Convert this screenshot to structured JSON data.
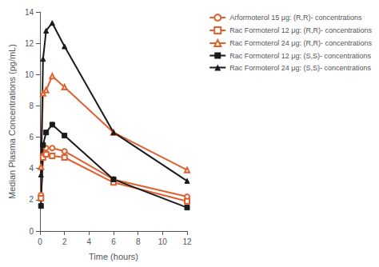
{
  "chart_data": {
    "type": "line",
    "xlabel": "Time (hours)",
    "ylabel": "Median Plasma Concentrations (pg/mL)",
    "x": [
      0.083,
      0.25,
      0.5,
      1.0,
      2.0,
      6.0,
      12.0
    ],
    "series": [
      {
        "name": "Arformoterol 15 μg: (R,R)- concentrations",
        "color": "#E06030",
        "marker": "open circle",
        "values": [
          2.3,
          4.8,
          5.3,
          5.3,
          5.1,
          3.3,
          2.2
        ]
      },
      {
        "name": "Rac Formoterol 12 μg: (R,R)- concentrations",
        "color": "#E06030",
        "marker": "open square",
        "values": [
          2.1,
          4.7,
          4.9,
          4.8,
          4.7,
          3.1,
          1.9
        ]
      },
      {
        "name": "Rac Formoterol 24 μg: (R,R)- concentrations",
        "color": "#E06030",
        "marker": "open triangle",
        "values": [
          4.1,
          8.8,
          9.0,
          9.9,
          9.2,
          6.3,
          3.9
        ]
      },
      {
        "name": "Rac Formoterol 12 μg: (S,S)- concentrations",
        "color": "#1a1a1a",
        "marker": "square",
        "values": [
          1.6,
          5.5,
          6.3,
          6.8,
          6.1,
          3.3,
          1.5
        ]
      },
      {
        "name": "Rac Formoterol 24 μg: (S,S)- concentrations",
        "color": "#1a1a1a",
        "marker": "triangle",
        "values": [
          3.6,
          11.0,
          12.8,
          13.3,
          11.8,
          6.3,
          3.2
        ]
      }
    ],
    "xlim": [
      0,
      12
    ],
    "xticks": [
      0,
      2,
      4,
      6,
      8,
      10,
      12
    ],
    "ylim": [
      0,
      14
    ],
    "yticks": [
      0,
      2,
      4,
      6,
      8,
      10,
      12,
      14
    ],
    "grid": false,
    "legend": "upper right"
  }
}
